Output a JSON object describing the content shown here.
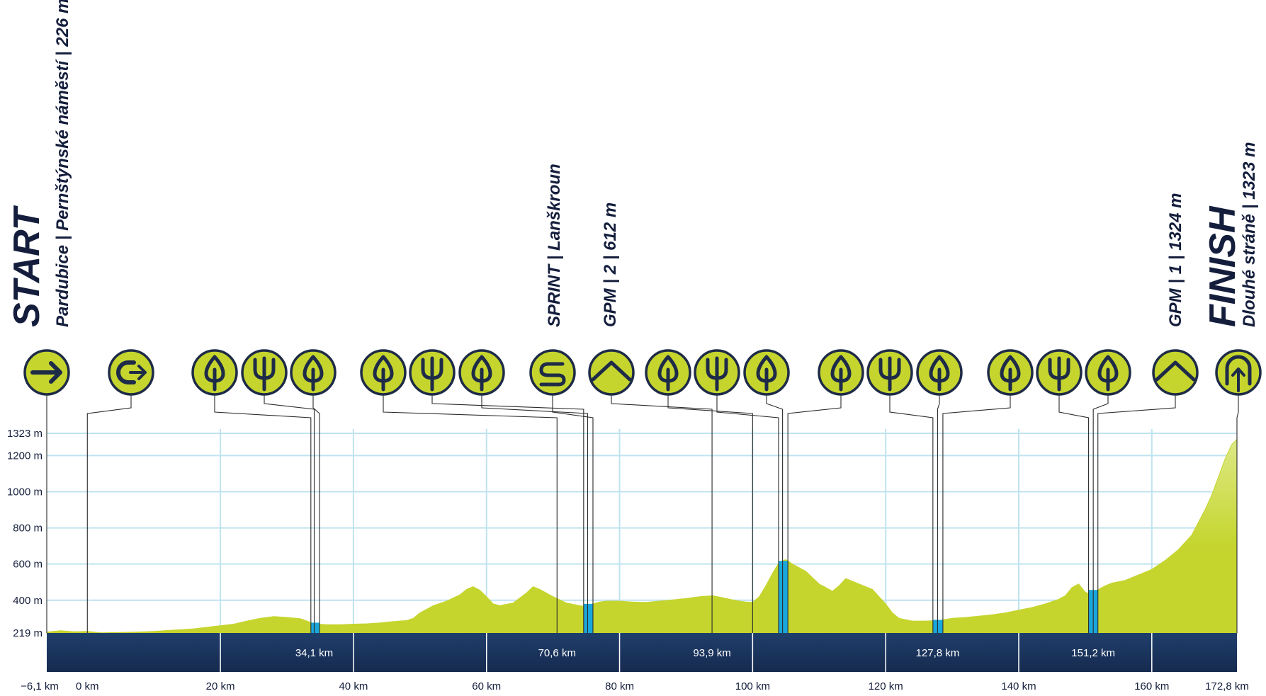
{
  "chart_data": {
    "type": "area",
    "title": "",
    "xlabel": "",
    "ylabel": "",
    "xlim": [
      -6.1,
      172.8
    ],
    "ylim": [
      219,
      1323
    ],
    "x_ticks": [
      {
        "value": -6.1,
        "label": "−6,1 km"
      },
      {
        "value": 0,
        "label": "0 km"
      },
      {
        "value": 20,
        "label": "20 km"
      },
      {
        "value": 40,
        "label": "40 km"
      },
      {
        "value": 60,
        "label": "60 km"
      },
      {
        "value": 80,
        "label": "80 km"
      },
      {
        "value": 100,
        "label": "100 km"
      },
      {
        "value": 120,
        "label": "120 km"
      },
      {
        "value": 140,
        "label": "140 km"
      },
      {
        "value": 160,
        "label": "160 km"
      },
      {
        "value": 172.8,
        "label": "172,8 km"
      }
    ],
    "y_ticks": [
      {
        "value": 219,
        "label": "219 m"
      },
      {
        "value": 400,
        "label": "400 m"
      },
      {
        "value": 600,
        "label": "600 m"
      },
      {
        "value": 800,
        "label": "800 m"
      },
      {
        "value": 1000,
        "label": "1000 m"
      },
      {
        "value": 1200,
        "label": "1200 m"
      },
      {
        "value": 1323,
        "label": "1323 m"
      }
    ],
    "grid": true,
    "colors": {
      "profile": "#c5d52e",
      "profile_top": "#dde985",
      "grid": "#bfe3ef",
      "band_top": "#1f3f6c",
      "band_bottom": "#162a4e",
      "marker_fill": "#c5d52e",
      "marker_ring": "#1e2b48",
      "climb_segment": "#1aa7dc",
      "leader_line": "#2a2a2a"
    },
    "profile": {
      "x": [
        -6.1,
        -4,
        -2,
        0,
        2,
        5,
        8,
        10,
        13,
        16,
        19,
        22,
        24,
        26,
        28,
        30,
        32,
        33,
        34,
        36,
        38,
        40,
        42,
        44,
        46,
        48,
        49,
        50,
        52,
        54,
        56,
        57,
        58,
        59,
        60,
        61,
        62,
        64,
        66,
        67,
        68,
        70,
        72,
        74,
        75,
        76,
        77,
        78,
        80,
        82,
        84,
        86,
        88,
        90,
        92,
        94,
        95,
        96,
        97,
        98,
        99,
        100,
        101,
        102,
        103,
        104,
        105,
        106,
        107,
        108,
        110,
        112,
        113,
        114,
        116,
        118,
        119,
        120,
        121,
        122,
        124,
        126,
        128,
        130,
        132,
        134,
        136,
        138,
        140,
        142,
        144,
        146,
        147,
        148,
        149,
        150,
        151,
        152,
        153,
        154,
        156,
        158,
        160,
        162,
        164,
        166,
        167,
        168,
        169,
        170,
        171,
        172,
        172.8
      ],
      "y": [
        224,
        232,
        226,
        228,
        220,
        222,
        225,
        228,
        235,
        242,
        255,
        268,
        285,
        300,
        310,
        305,
        298,
        285,
        270,
        265,
        265,
        268,
        270,
        275,
        282,
        288,
        300,
        330,
        370,
        395,
        430,
        460,
        475,
        455,
        420,
        380,
        370,
        385,
        440,
        475,
        460,
        420,
        385,
        370,
        365,
        380,
        390,
        395,
        395,
        390,
        388,
        395,
        402,
        410,
        420,
        425,
        418,
        410,
        402,
        395,
        390,
        388,
        420,
        480,
        550,
        610,
        625,
        600,
        580,
        560,
        490,
        450,
        480,
        520,
        490,
        460,
        420,
        380,
        330,
        300,
        285,
        285,
        288,
        300,
        305,
        312,
        320,
        330,
        345,
        360,
        380,
        405,
        425,
        470,
        490,
        445,
        430,
        460,
        480,
        495,
        510,
        540,
        570,
        620,
        680,
        760,
        830,
        900,
        980,
        1080,
        1180,
        1260,
        1290
      ],
      "unit": "m"
    },
    "climb_segments": [
      {
        "x_start": 33.6,
        "x_end": 34.9
      },
      {
        "x_start": 74.6,
        "x_end": 76.0
      },
      {
        "x_start": 103.9,
        "x_end": 105.3
      },
      {
        "x_start": 127.1,
        "x_end": 128.6
      },
      {
        "x_start": 150.5,
        "x_end": 151.9
      }
    ],
    "segment_labels": [
      {
        "x": 34.1,
        "label": "34,1 km"
      },
      {
        "x": 70.6,
        "label": "70,6 km"
      },
      {
        "x": 93.9,
        "label": "93,9 km"
      },
      {
        "x": 127.8,
        "label": "127,8 km"
      },
      {
        "x": 151.2,
        "label": "151,2 km"
      }
    ],
    "band_dividers": [
      20,
      40,
      60,
      80,
      100,
      120,
      140,
      160
    ],
    "markers": [
      {
        "icon": "arrow-right-icon",
        "x": -6.1
      },
      {
        "icon": "u-turn-icon",
        "x": 0
      },
      {
        "icon": "leaf-icon",
        "x": 33.6
      },
      {
        "icon": "fork-icon",
        "x": 34.1
      },
      {
        "icon": "leaf-icon",
        "x": 34.9
      },
      {
        "icon": "leaf-icon",
        "x": 70.6
      },
      {
        "icon": "fork-icon",
        "x": 74.6
      },
      {
        "icon": "leaf-icon",
        "x": 75.2
      },
      {
        "icon": "sprint-icon",
        "x": 76.0
      },
      {
        "icon": "climb-icon",
        "x": 93.9
      },
      {
        "icon": "leaf-icon",
        "x": 100
      },
      {
        "icon": "fork-icon",
        "x": 103.9
      },
      {
        "icon": "leaf-icon",
        "x": 104.5
      },
      {
        "icon": "leaf-icon",
        "x": 105.3
      },
      {
        "icon": "fork-icon",
        "x": 127.1
      },
      {
        "icon": "leaf-icon",
        "x": 127.8
      },
      {
        "icon": "leaf-icon",
        "x": 128.6
      },
      {
        "icon": "fork-icon",
        "x": 150.5
      },
      {
        "icon": "leaf-icon",
        "x": 151.2
      },
      {
        "icon": "climb-icon",
        "x": 151.9
      },
      {
        "icon": "finish-icon",
        "x": 172.8
      }
    ],
    "annotations": [
      {
        "title": "START",
        "lines": [
          "Pardubice | Pernštýnské náměstí | 226 m"
        ]
      },
      {
        "title": "",
        "lines": [
          "SPRINT | Lanškroun"
        ]
      },
      {
        "title": "",
        "lines": [
          "GPM | 2 | 612 m"
        ]
      },
      {
        "title": "",
        "lines": [
          "GPM | 1 | 1324 m"
        ]
      },
      {
        "title": "FINISH",
        "lines": [
          "Dlouhé stráně | 1323 m"
        ]
      }
    ]
  }
}
